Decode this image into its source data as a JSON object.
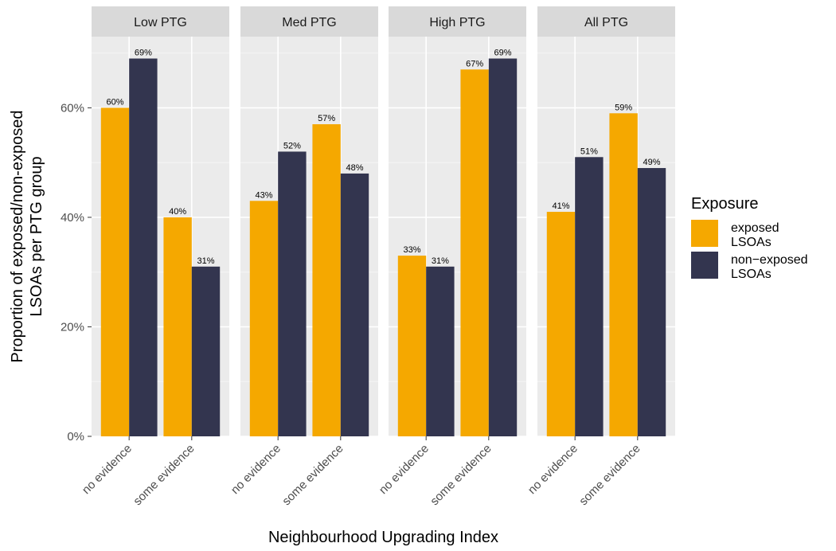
{
  "chart_data": {
    "type": "bar",
    "facets": [
      "Low PTG",
      "Med PTG",
      "High PTG",
      "All PTG"
    ],
    "categories": [
      "no evidence",
      "some evidence"
    ],
    "series": [
      {
        "name": "exposed LSOAs",
        "color": "#F5A800",
        "values": [
          [
            60,
            40
          ],
          [
            43,
            57
          ],
          [
            33,
            67
          ],
          [
            41,
            59
          ]
        ],
        "labels": [
          [
            "60%",
            "40%"
          ],
          [
            "43%",
            "57%"
          ],
          [
            "33%",
            "67%"
          ],
          [
            "41%",
            "59%"
          ]
        ]
      },
      {
        "name": "non-exposed LSOAs",
        "color": "#33354F",
        "values": [
          [
            69,
            31
          ],
          [
            52,
            48
          ],
          [
            31,
            69
          ],
          [
            51,
            49
          ]
        ],
        "labels": [
          [
            "69%",
            "31%"
          ],
          [
            "52%",
            "48%"
          ],
          [
            "31%",
            "69%"
          ],
          [
            "51%",
            "49%"
          ]
        ]
      }
    ],
    "xlabel": "Neighbourhood Upgrading Index",
    "ylabel_lines": [
      "Proportion of exposed/non-exposed",
      "LSOAs per PTG group"
    ],
    "ylim": [
      0,
      73
    ],
    "yticks": [
      0,
      20,
      40,
      60
    ],
    "ytick_labels": [
      "0%",
      "20%",
      "40%",
      "60%"
    ],
    "grid": true,
    "legend": {
      "title": "Exposure",
      "position": "right",
      "entries": [
        {
          "lines": [
            "exposed",
            "LSOAs"
          ],
          "color": "#F5A800"
        },
        {
          "lines": [
            "non−exposed",
            "LSOAs"
          ],
          "color": "#33354F"
        }
      ]
    }
  }
}
